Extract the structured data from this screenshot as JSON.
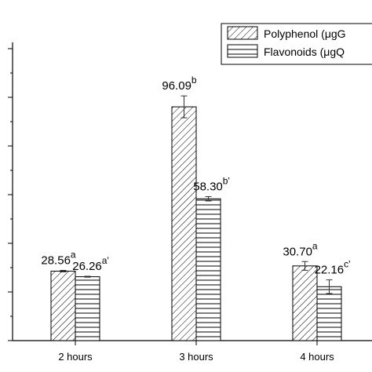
{
  "chart_data": {
    "type": "bar",
    "categories": [
      "2 hours",
      "3 hours",
      "4 hours"
    ],
    "series": [
      {
        "name": "Polyphenol (μgG",
        "pattern": "diagonal-hatch",
        "values": [
          28.56,
          96.09,
          30.7
        ],
        "errors": [
          0.3,
          4.5,
          1.8
        ],
        "labels": [
          "28.56",
          "96.09",
          "30.70"
        ],
        "superscripts": [
          "a",
          "b",
          "a"
        ]
      },
      {
        "name": "Flavonoids (μgQ",
        "pattern": "horizontal-lines",
        "values": [
          26.26,
          58.3,
          22.16
        ],
        "errors": [
          0.2,
          0.9,
          2.8
        ],
        "labels": [
          "26.26",
          "58.30",
          "22.16"
        ],
        "superscripts": [
          "a'",
          "b'",
          "c'"
        ]
      }
    ],
    "ylim": [
      0,
      120
    ],
    "yticks": [
      0,
      20,
      40,
      60,
      80,
      100,
      120
    ],
    "grid": false,
    "legend": "top-right",
    "colors": {
      "bar_fill": "#ffffff",
      "stroke": "#000000"
    }
  }
}
